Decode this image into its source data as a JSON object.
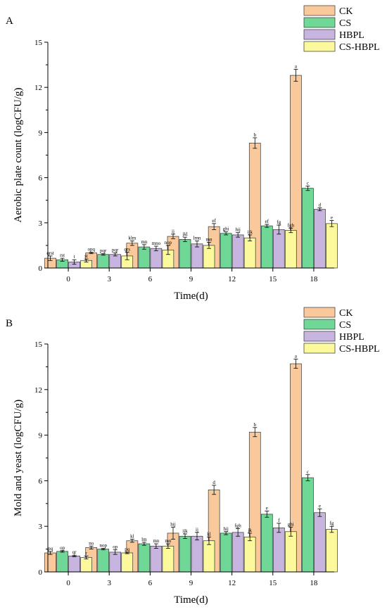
{
  "colors": {
    "CK": "#f9c99b",
    "CS": "#6fd896",
    "HBPL": "#c7b5e0",
    "CS-HBPL": "#fbf99b"
  },
  "chart_data": [
    {
      "type": "bar",
      "panel_label": "A",
      "xlabel": "Time(d)",
      "ylabel": "Aerobic plate count (logCFU/g)",
      "ylim": [
        0,
        15
      ],
      "yticks": [
        "0",
        "3",
        "6",
        "9",
        "12",
        "15"
      ],
      "categories": [
        "0",
        "3",
        "6",
        "9",
        "12",
        "15",
        "18"
      ],
      "legend_position": "top-right",
      "series": [
        {
          "name": "CK",
          "values": [
            0.65,
            1.0,
            1.65,
            2.1,
            2.75,
            8.3,
            12.8
          ],
          "errors": [
            0.15,
            0.05,
            0.15,
            0.15,
            0.2,
            0.35,
            0.4
          ],
          "labels": [
            "qrst",
            "opq",
            "klm",
            "ij",
            "ef",
            "b",
            "a"
          ]
        },
        {
          "name": "CS",
          "values": [
            0.55,
            0.9,
            1.4,
            1.9,
            2.3,
            2.8,
            5.3
          ],
          "errors": [
            0.1,
            0.05,
            0.15,
            0.15,
            0.1,
            0.1,
            0.15
          ],
          "labels": [
            "rst",
            "pqr",
            "mn",
            "jkl",
            "ghi",
            "ef",
            "c"
          ]
        },
        {
          "name": "HBPL",
          "values": [
            0.4,
            0.9,
            1.3,
            1.6,
            2.2,
            2.55,
            3.9
          ],
          "errors": [
            0.15,
            0.1,
            0.15,
            0.2,
            0.15,
            0.3,
            0.1
          ],
          "labels": [
            "t",
            "pqr",
            "mno",
            "lmn",
            "hij",
            "fg",
            "d"
          ]
        },
        {
          "name": "CS-HBPL",
          "values": [
            0.5,
            0.8,
            1.2,
            1.5,
            2.0,
            2.5,
            2.95
          ],
          "errors": [
            0.1,
            0.25,
            0.3,
            0.2,
            0.2,
            0.15,
            0.2
          ],
          "labels": [
            "st",
            "qrs",
            "nop",
            "mn",
            "ijk",
            "fgh",
            "e"
          ]
        }
      ]
    },
    {
      "type": "bar",
      "panel_label": "B",
      "xlabel": "Time(d)",
      "ylabel": "Mold and yeast (logCFU/g)",
      "ylim": [
        0,
        15
      ],
      "yticks": [
        "0",
        "3",
        "6",
        "9",
        "12",
        "15"
      ],
      "categories": [
        "0",
        "3",
        "6",
        "9",
        "12",
        "15",
        "18"
      ],
      "legend_position": "top-right",
      "series": [
        {
          "name": "CK",
          "values": [
            1.25,
            1.6,
            2.05,
            2.55,
            5.4,
            9.2,
            13.7
          ],
          "errors": [
            0.1,
            0.1,
            0.1,
            0.4,
            0.3,
            0.3,
            0.3
          ],
          "labels": [
            "pq",
            "no",
            "kl",
            "hij",
            "d",
            "b",
            "a"
          ]
        },
        {
          "name": "CS",
          "values": [
            1.35,
            1.5,
            1.85,
            2.35,
            2.55,
            3.8,
            6.2
          ],
          "errors": [
            0.05,
            0.05,
            0.1,
            0.15,
            0.1,
            0.2,
            0.2
          ],
          "labels": [
            "op",
            "nop",
            "lm",
            "ijk",
            "hij",
            "e",
            "c"
          ]
        },
        {
          "name": "HBPL",
          "values": [
            1.05,
            1.3,
            1.7,
            2.35,
            2.6,
            2.9,
            3.9
          ],
          "errors": [
            0.05,
            0.15,
            0.15,
            0.25,
            0.25,
            0.3,
            0.25
          ],
          "labels": [
            "qr",
            "op",
            "mn",
            "ij",
            "fgh",
            "f",
            "e"
          ]
        },
        {
          "name": "CS-HBPL",
          "values": [
            0.95,
            1.25,
            1.7,
            2.05,
            2.3,
            2.65,
            2.8
          ],
          "errors": [
            0.1,
            0.05,
            0.15,
            0.25,
            0.25,
            0.3,
            0.2
          ],
          "labels": [
            "r",
            "pq",
            "mn",
            "kl",
            "jk",
            "ghi",
            "fg"
          ]
        }
      ]
    }
  ]
}
